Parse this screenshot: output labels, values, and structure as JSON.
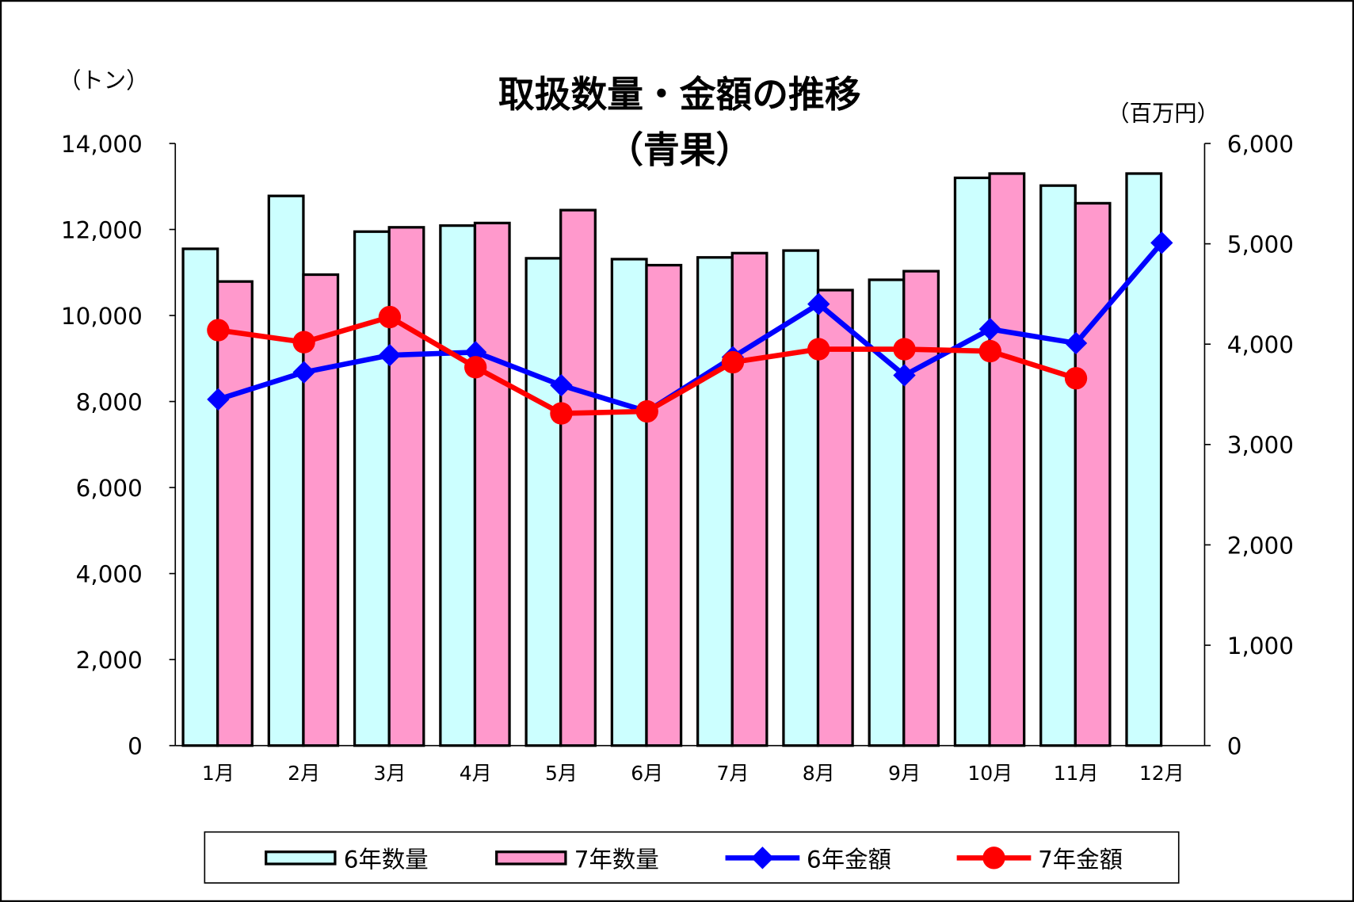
{
  "chart_data": {
    "type": "bar+line",
    "title": "取扱数量・金額の推移",
    "subtitle": "（青果）",
    "y_left_label": "（トン）",
    "y_right_label": "（百万円）",
    "categories": [
      "1月",
      "2月",
      "3月",
      "4月",
      "5月",
      "6月",
      "7月",
      "8月",
      "9月",
      "10月",
      "11月",
      "12月"
    ],
    "y_left": {
      "min": 0,
      "max": 14000,
      "step": 2000,
      "ticks": [
        "0",
        "2,000",
        "4,000",
        "6,000",
        "8,000",
        "10,000",
        "12,000",
        "14,000"
      ]
    },
    "y_right": {
      "min": 0,
      "max": 6000,
      "step": 1000,
      "ticks": [
        "0",
        "1,000",
        "2,000",
        "3,000",
        "4,000",
        "5,000",
        "6,000"
      ]
    },
    "series": [
      {
        "name": "6年数量",
        "type": "bar",
        "axis": "left",
        "color": "#ccffff",
        "values": [
          11550,
          12780,
          11950,
          12090,
          11330,
          11310,
          11350,
          11510,
          10830,
          13200,
          13020,
          13300
        ]
      },
      {
        "name": "7年数量",
        "type": "bar",
        "axis": "left",
        "color": "#ff99cc",
        "values": [
          10790,
          10950,
          12050,
          12150,
          12450,
          11170,
          11450,
          10590,
          11030,
          13300,
          12610,
          null
        ]
      },
      {
        "name": "6年金額",
        "type": "line",
        "axis": "right",
        "color": "#0000ff",
        "marker": "diamond",
        "values": [
          3450,
          3720,
          3890,
          3920,
          3590,
          3330,
          3870,
          4400,
          3690,
          4150,
          4010,
          5010
        ]
      },
      {
        "name": "7年金額",
        "type": "line",
        "axis": "right",
        "color": "#ff0000",
        "marker": "circle",
        "values": [
          4140,
          4020,
          4270,
          3770,
          3310,
          3330,
          3820,
          3950,
          3950,
          3930,
          3660,
          null
        ]
      }
    ],
    "legend_position": "bottom",
    "grid": false
  }
}
